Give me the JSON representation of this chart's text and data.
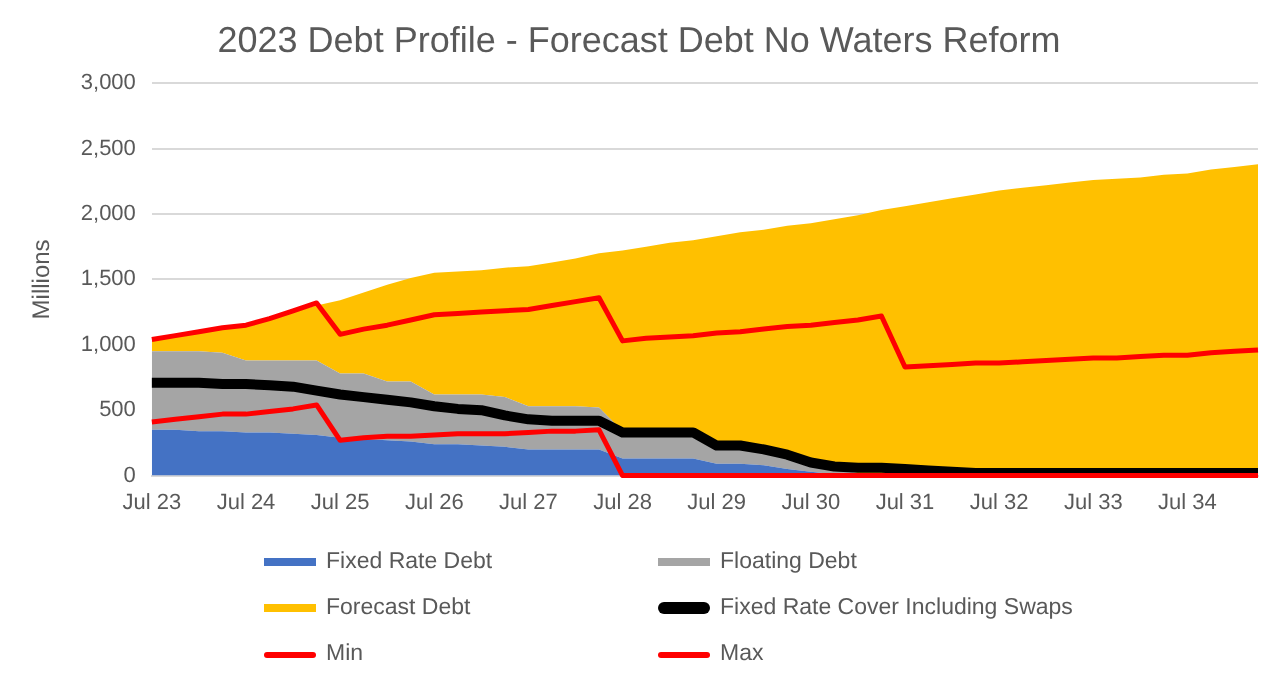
{
  "chart_data": {
    "type": "area",
    "title": "2023 Debt Profile - Forecast Debt No Waters Reform",
    "ylabel": "Millions",
    "categories": [
      "Jul 23",
      null,
      null,
      null,
      "Jul 24",
      null,
      null,
      null,
      "Jul 25",
      null,
      null,
      null,
      "Jul 26",
      null,
      null,
      null,
      "Jul 27",
      null,
      null,
      null,
      "Jul 28",
      null,
      null,
      null,
      "Jul 29",
      null,
      null,
      null,
      "Jul 30",
      null,
      null,
      null,
      "Jul 31",
      null,
      null,
      null,
      "Jul 32",
      null,
      null,
      null,
      "Jul 33",
      null,
      null,
      null,
      "Jul 34",
      null,
      null,
      null
    ],
    "stacked": true,
    "ylim": [
      0,
      3000
    ],
    "yticks": [
      0,
      {
        "value": 500,
        "label": "500"
      },
      {
        "value": 1000,
        "label": "1,000"
      },
      {
        "value": 1500,
        "label": "1,500"
      },
      {
        "value": 2000,
        "label": "2,000"
      },
      {
        "value": 2500,
        "label": "2,500"
      },
      {
        "value": 3000,
        "label": "3,000"
      }
    ],
    "grid": "y",
    "legend": "bottom",
    "marker": "none",
    "series": [
      {
        "name": "Fixed Rate Debt",
        "type": "area",
        "color": "#4472c4",
        "values": [
          350,
          350,
          340,
          340,
          330,
          330,
          320,
          310,
          290,
          280,
          270,
          260,
          240,
          240,
          230,
          220,
          200,
          200,
          200,
          200,
          130,
          130,
          130,
          130,
          90,
          90,
          80,
          50,
          30,
          10,
          0,
          0,
          0,
          0,
          0,
          0,
          0,
          0,
          0,
          0,
          0,
          0,
          0,
          0,
          0,
          0,
          0,
          0
        ]
      },
      {
        "name": "Floating Debt",
        "type": "area",
        "color": "#a5a5a5",
        "values": [
          600,
          600,
          610,
          600,
          550,
          550,
          560,
          570,
          490,
          500,
          450,
          460,
          380,
          380,
          390,
          380,
          330,
          330,
          330,
          320,
          210,
          220,
          220,
          220,
          160,
          160,
          100,
          80,
          60,
          40,
          20,
          10,
          0,
          0,
          0,
          0,
          0,
          0,
          0,
          0,
          0,
          0,
          0,
          0,
          0,
          0,
          0,
          0
        ]
      },
      {
        "name": "Forecast Debt",
        "type": "area",
        "color": "#ffc000",
        "values": [
          90,
          120,
          150,
          190,
          270,
          320,
          370,
          420,
          560,
          620,
          740,
          790,
          930,
          940,
          950,
          990,
          1070,
          1100,
          1130,
          1180,
          1380,
          1400,
          1430,
          1450,
          1580,
          1610,
          1700,
          1780,
          1840,
          1910,
          1970,
          2020,
          2060,
          2090,
          2120,
          2150,
          2180,
          2200,
          2220,
          2240,
          2260,
          2270,
          2280,
          2300,
          2310,
          2340,
          2360,
          2380
        ]
      },
      {
        "name": "Fixed Rate Cover Including Swaps",
        "type": "line",
        "color": "#000000",
        "values": [
          710,
          710,
          710,
          700,
          700,
          690,
          680,
          650,
          620,
          600,
          580,
          560,
          530,
          510,
          500,
          460,
          430,
          420,
          420,
          420,
          330,
          330,
          330,
          330,
          230,
          230,
          200,
          160,
          100,
          70,
          60,
          60,
          50,
          40,
          30,
          20,
          20,
          20,
          20,
          20,
          20,
          20,
          20,
          20,
          20,
          20,
          20,
          20
        ]
      },
      {
        "name": "Min",
        "type": "line",
        "color": "#ff0000",
        "values": [
          410,
          430,
          450,
          470,
          470,
          490,
          510,
          540,
          270,
          290,
          300,
          300,
          310,
          320,
          320,
          320,
          330,
          340,
          340,
          350,
          0,
          0,
          0,
          0,
          0,
          0,
          0,
          0,
          0,
          0,
          0,
          0,
          0,
          0,
          0,
          0,
          0,
          0,
          0,
          0,
          0,
          0,
          0,
          0,
          0,
          0,
          0,
          0
        ]
      },
      {
        "name": "Max",
        "type": "line",
        "color": "#ff0000",
        "values": [
          1040,
          1070,
          1100,
          1130,
          1150,
          1200,
          1260,
          1320,
          1080,
          1120,
          1150,
          1190,
          1230,
          1240,
          1250,
          1260,
          1270,
          1300,
          1330,
          1360,
          1030,
          1050,
          1060,
          1070,
          1090,
          1100,
          1120,
          1140,
          1150,
          1170,
          1190,
          1220,
          830,
          840,
          850,
          860,
          860,
          870,
          880,
          890,
          900,
          900,
          910,
          920,
          920,
          940,
          950,
          960
        ]
      }
    ]
  }
}
